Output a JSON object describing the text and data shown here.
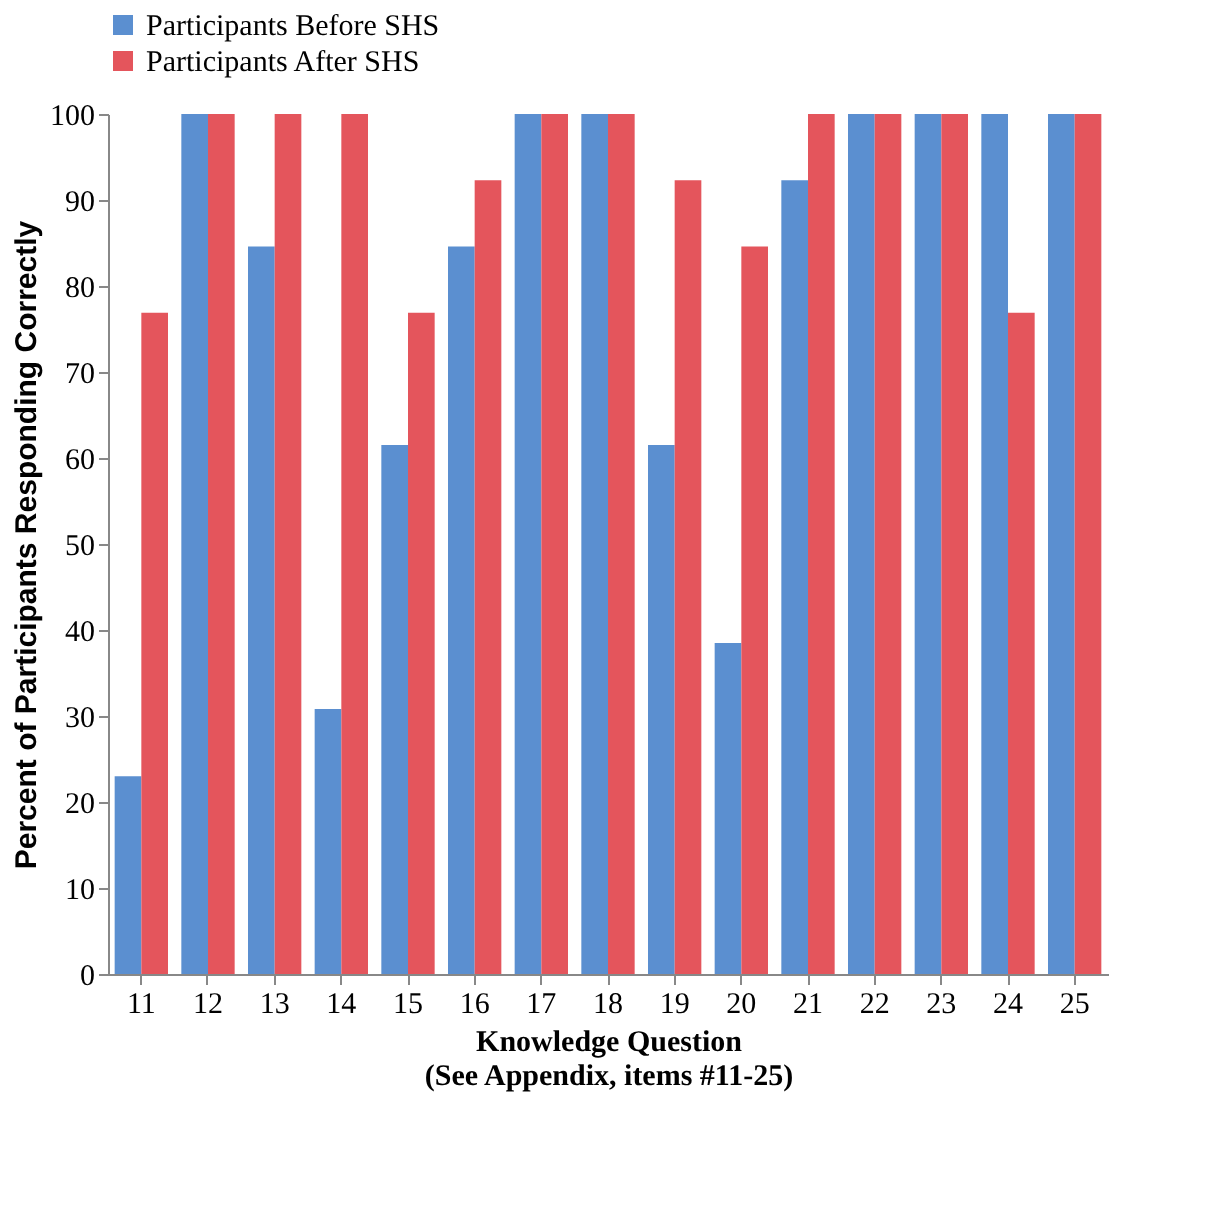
{
  "chart_data": {
    "type": "bar",
    "ylabel": "Percent of Participants Responding Correctly",
    "xlabel": "Knowledge Question\n(See Appendix, items #11-25)",
    "categories": [
      "11",
      "12",
      "13",
      "14",
      "15",
      "16",
      "17",
      "18",
      "19",
      "20",
      "21",
      "22",
      "23",
      "24",
      "25"
    ],
    "series": [
      {
        "name": "Participants Before SHS",
        "color": "#5b8fd0",
        "values": [
          23,
          100,
          84.6,
          30.8,
          61.5,
          84.6,
          100,
          100,
          61.5,
          38.5,
          92.3,
          100,
          100,
          100,
          100
        ]
      },
      {
        "name": "Participants After SHS",
        "color": "#e4555c",
        "values": [
          76.9,
          100,
          100,
          100,
          76.9,
          92.3,
          100,
          100,
          92.3,
          84.6,
          100,
          100,
          100,
          76.9,
          100
        ]
      }
    ],
    "ylim": [
      0,
      100
    ],
    "yticks": [
      0,
      10,
      20,
      30,
      40,
      50,
      60,
      70,
      80,
      90,
      100
    ],
    "legend": "top",
    "grid": false
  }
}
